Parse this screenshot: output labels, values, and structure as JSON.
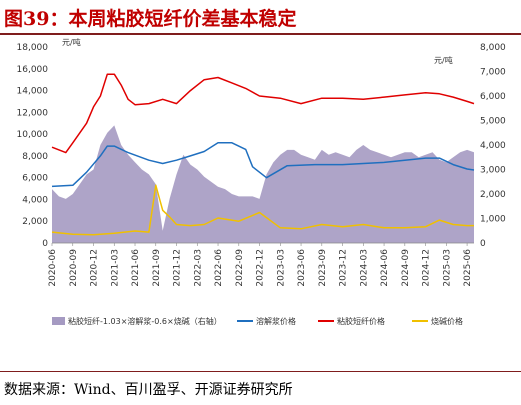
{
  "figure": {
    "title": "图39：本周粘胶短纤价差基本稳定",
    "source": "数据来源：Wind、百川盈孚、开源证券研究所"
  },
  "colors": {
    "title": "#c00000",
    "spread_area": "#a59ac2",
    "viscose_fiber": "#e00000",
    "dissolving_pulp": "#1f6fbf",
    "caustic_soda": "#f0c000"
  },
  "chart_data": {
    "type": "line",
    "left_axis": {
      "unit": "元/吨",
      "ylim": [
        0,
        18000
      ],
      "ticks": [
        "0",
        "2,000",
        "4,000",
        "6,000",
        "8,000",
        "10,000",
        "12,000",
        "14,000",
        "16,000",
        "18,000"
      ]
    },
    "right_axis": {
      "unit": "元/吨",
      "ylim": [
        0,
        8000
      ],
      "ticks": [
        "0",
        "1,000",
        "2,000",
        "3,000",
        "4,000",
        "5,000",
        "6,000",
        "7,000",
        "8,000"
      ]
    },
    "x_range": [
      "2020-06",
      "2025-07"
    ],
    "x_ticks": [
      "2020-06",
      "2020-09",
      "2020-12",
      "2021-03",
      "2021-06",
      "2021-09",
      "2021-12",
      "2022-03",
      "2022-06",
      "2022-09",
      "2022-12",
      "2023-03",
      "2023-06",
      "2023-09",
      "2023-12",
      "2024-03",
      "2024-06",
      "2024-09",
      "2024-12",
      "2025-03",
      "2025-06"
    ],
    "grid": false,
    "legend_position": "bottom",
    "series": [
      {
        "name": "粘胶短纤-1.03×溶解浆-0.6×烧碱（右轴）",
        "type": "area",
        "axis": "right",
        "color": "#a59ac2",
        "x": [
          "2020-06",
          "2020-07",
          "2020-08",
          "2020-09",
          "2020-10",
          "2020-11",
          "2020-12",
          "2021-01",
          "2021-02",
          "2021-03",
          "2021-04",
          "2021-05",
          "2021-06",
          "2021-07",
          "2021-08",
          "2021-09",
          "2021-10",
          "2021-11",
          "2021-12",
          "2022-01",
          "2022-02",
          "2022-03",
          "2022-04",
          "2022-05",
          "2022-06",
          "2022-07",
          "2022-08",
          "2022-09",
          "2022-10",
          "2022-11",
          "2022-12",
          "2023-01",
          "2023-02",
          "2023-03",
          "2023-04",
          "2023-05",
          "2023-06",
          "2023-07",
          "2023-08",
          "2023-09",
          "2023-10",
          "2023-11",
          "2023-12",
          "2024-01",
          "2024-02",
          "2024-03",
          "2024-04",
          "2024-05",
          "2024-06",
          "2024-07",
          "2024-08",
          "2024-09",
          "2024-10",
          "2024-11",
          "2024-12",
          "2025-01",
          "2025-02",
          "2025-03",
          "2025-04",
          "2025-05",
          "2025-06",
          "2025-07"
        ],
        "y": [
          2200,
          1900,
          1800,
          2000,
          2400,
          2800,
          3000,
          4000,
          4500,
          4800,
          4000,
          3600,
          3300,
          3000,
          2800,
          2400,
          500,
          1800,
          2800,
          3600,
          3200,
          3000,
          2700,
          2500,
          2300,
          2200,
          2000,
          1900,
          1900,
          1900,
          1800,
          2800,
          3300,
          3600,
          3800,
          3800,
          3600,
          3500,
          3400,
          3800,
          3600,
          3700,
          3600,
          3500,
          3800,
          4000,
          3800,
          3700,
          3600,
          3500,
          3600,
          3700,
          3700,
          3500,
          3600,
          3700,
          3400,
          3300,
          3500,
          3700,
          3800,
          3700
        ]
      },
      {
        "name": "溶解浆价格",
        "type": "line",
        "axis": "left",
        "color": "#1f6fbf",
        "x": [
          "2020-06",
          "2020-09",
          "2020-11",
          "2021-01",
          "2021-02",
          "2021-03",
          "2021-05",
          "2021-08",
          "2021-10",
          "2021-12",
          "2022-02",
          "2022-04",
          "2022-06",
          "2022-08",
          "2022-10",
          "2022-11",
          "2023-01",
          "2023-04",
          "2023-08",
          "2023-12",
          "2024-03",
          "2024-06",
          "2024-09",
          "2024-12",
          "2025-02",
          "2025-04",
          "2025-06",
          "2025-07"
        ],
        "y": [
          5200,
          5300,
          6500,
          8000,
          8900,
          8900,
          8300,
          7600,
          7300,
          7600,
          8000,
          8400,
          9200,
          9200,
          8600,
          7000,
          6000,
          7100,
          7200,
          7200,
          7300,
          7400,
          7600,
          7800,
          7800,
          7200,
          6800,
          6700
        ]
      },
      {
        "name": "粘胶短纤价格",
        "type": "line",
        "axis": "left",
        "color": "#e00000",
        "x": [
          "2020-06",
          "2020-08",
          "2020-09",
          "2020-11",
          "2020-12",
          "2021-01",
          "2021-02",
          "2021-03",
          "2021-04",
          "2021-05",
          "2021-06",
          "2021-08",
          "2021-10",
          "2021-12",
          "2022-02",
          "2022-04",
          "2022-06",
          "2022-08",
          "2022-10",
          "2022-12",
          "2023-03",
          "2023-06",
          "2023-09",
          "2023-12",
          "2024-03",
          "2024-06",
          "2024-09",
          "2024-12",
          "2025-02",
          "2025-04",
          "2025-06",
          "2025-07"
        ],
        "y": [
          8800,
          8300,
          9200,
          11000,
          12500,
          13500,
          15500,
          15500,
          14500,
          13200,
          12700,
          12800,
          13200,
          12800,
          14000,
          15000,
          15200,
          14700,
          14200,
          13500,
          13300,
          12800,
          13300,
          13300,
          13200,
          13400,
          13600,
          13800,
          13700,
          13400,
          13000,
          12800
        ]
      },
      {
        "name": "烧碱价格",
        "type": "line",
        "axis": "left",
        "color": "#f0c000",
        "x": [
          "2020-06",
          "2020-09",
          "2020-12",
          "2021-03",
          "2021-06",
          "2021-08",
          "2021-09",
          "2021-10",
          "2021-11",
          "2021-12",
          "2022-02",
          "2022-04",
          "2022-06",
          "2022-09",
          "2022-12",
          "2023-03",
          "2023-06",
          "2023-09",
          "2023-12",
          "2024-03",
          "2024-06",
          "2024-09",
          "2024-12",
          "2025-02",
          "2025-04",
          "2025-06",
          "2025-07"
        ],
        "y": [
          1000,
          800,
          750,
          900,
          1100,
          1000,
          5300,
          3000,
          2400,
          1700,
          1600,
          1700,
          2300,
          2000,
          2800,
          1400,
          1300,
          1700,
          1500,
          1700,
          1400,
          1400,
          1500,
          2100,
          1700,
          1600,
          1600
        ]
      }
    ]
  }
}
